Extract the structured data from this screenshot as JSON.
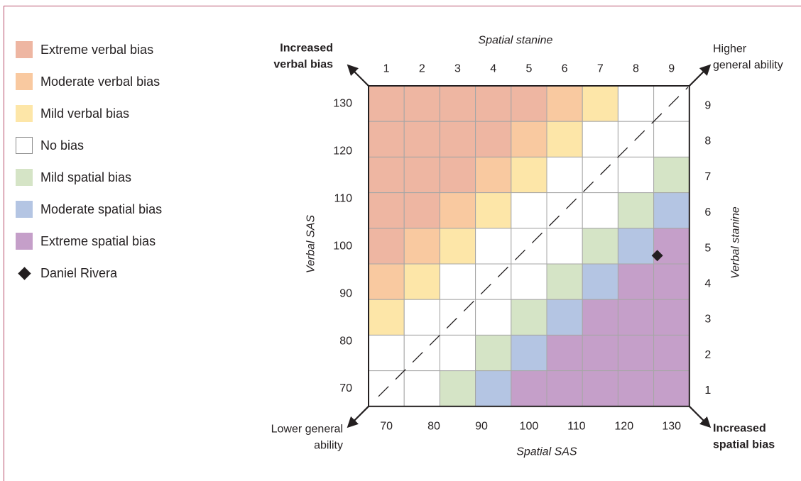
{
  "legend": {
    "items": [
      {
        "label": "Extreme verbal bias",
        "color": "#eeb6a2",
        "key": "ev"
      },
      {
        "label": "Moderate verbal bias",
        "color": "#f9c9a0",
        "key": "mv"
      },
      {
        "label": "Mild verbal bias",
        "color": "#fde6a8",
        "key": "lv"
      },
      {
        "label": "No bias",
        "color": "#ffffff",
        "key": "nb"
      },
      {
        "label": "Mild spatial bias",
        "color": "#d5e4c6",
        "key": "ls"
      },
      {
        "label": "Moderate spatial bias",
        "color": "#b4c5e3",
        "key": "ms"
      },
      {
        "label": "Extreme spatial bias",
        "color": "#c59fc9",
        "key": "es"
      }
    ],
    "marker_label": "Daniel Rivera"
  },
  "chart_data": {
    "type": "heatmap",
    "title": "",
    "top_axis_label": "Spatial stanine",
    "bottom_axis_label": "Spatial SAS",
    "left_axis_label": "Verbal SAS",
    "right_axis_label": "Verbal stanine",
    "spatial_stanine_ticks": [
      "1",
      "2",
      "3",
      "4",
      "5",
      "6",
      "7",
      "8",
      "9"
    ],
    "verbal_stanine_ticks": [
      "9",
      "8",
      "7",
      "6",
      "5",
      "4",
      "3",
      "2",
      "1"
    ],
    "spatial_sas_ticks": [
      "70",
      "80",
      "90",
      "100",
      "110",
      "120",
      "130"
    ],
    "verbal_sas_ticks": [
      "130",
      "120",
      "110",
      "100",
      "90",
      "80",
      "70"
    ],
    "corner_labels": {
      "top_left": [
        "Increased",
        "verbal bias"
      ],
      "top_right": [
        "Higher",
        "general ability"
      ],
      "bottom_left": [
        "Lower general",
        "ability"
      ],
      "bottom_right": [
        "Increased",
        "spatial bias"
      ]
    },
    "colors": {
      "ev": "#eeb6a2",
      "mv": "#f9c9a0",
      "lv": "#fde6a8",
      "nb": "#ffffff",
      "ls": "#d5e4c6",
      "ms": "#b4c5e3",
      "es": "#c59fc9"
    },
    "grid_rows_top_to_bottom": [
      [
        "ev",
        "ev",
        "ev",
        "ev",
        "ev",
        "mv",
        "lv",
        "nb",
        "nb"
      ],
      [
        "ev",
        "ev",
        "ev",
        "ev",
        "mv",
        "lv",
        "nb",
        "nb",
        "nb"
      ],
      [
        "ev",
        "ev",
        "ev",
        "mv",
        "lv",
        "nb",
        "nb",
        "nb",
        "ls"
      ],
      [
        "ev",
        "ev",
        "mv",
        "lv",
        "nb",
        "nb",
        "nb",
        "ls",
        "ms"
      ],
      [
        "ev",
        "mv",
        "lv",
        "nb",
        "nb",
        "nb",
        "ls",
        "ms",
        "es"
      ],
      [
        "mv",
        "lv",
        "nb",
        "nb",
        "nb",
        "ls",
        "ms",
        "es",
        "es"
      ],
      [
        "lv",
        "nb",
        "nb",
        "nb",
        "ls",
        "ms",
        "es",
        "es",
        "es"
      ],
      [
        "nb",
        "nb",
        "nb",
        "ls",
        "ms",
        "es",
        "es",
        "es",
        "es"
      ],
      [
        "nb",
        "nb",
        "ls",
        "ms",
        "es",
        "es",
        "es",
        "es",
        "es"
      ]
    ],
    "marker": {
      "name": "Daniel Rivera",
      "spatial_sas": 127,
      "verbal_sas": 98
    }
  }
}
